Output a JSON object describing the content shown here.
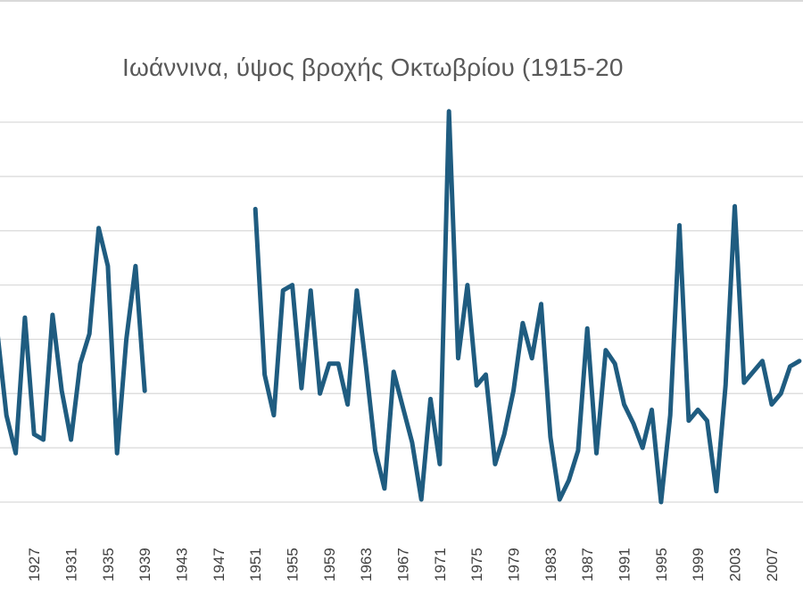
{
  "chart_data": {
    "type": "line",
    "title": "Ιωάννινα, ύψος βροχής Οκτωβρίου (1915-20",
    "xlabel": "",
    "ylabel": "",
    "grid": true,
    "legend": "none",
    "colors": {
      "line": "#1f5c80",
      "grid": "#d9d9d9",
      "text": "#404040",
      "title": "#595959"
    },
    "ylim": [
      0,
      7
    ],
    "xlim": [
      1923.3,
      2010.4
    ],
    "tick_labels": [
      "1927",
      "1931",
      "1935",
      "1939",
      "1943",
      "1947",
      "1951",
      "1955",
      "1959",
      "1963",
      "1967",
      "1971",
      "1975",
      "1979",
      "1983",
      "1987",
      "1991",
      "1995",
      "1999",
      "2003",
      "2007"
    ],
    "series": [
      {
        "x": [
          1923,
          1924,
          1925,
          1926,
          1927,
          1928,
          1929,
          1930,
          1931,
          1932,
          1933,
          1934,
          1935,
          1936,
          1937,
          1938,
          1939,
          1940,
          1941,
          1942,
          1943,
          1944,
          1945,
          1946,
          1947,
          1948,
          1949,
          1950,
          1951,
          1952,
          1953,
          1954,
          1955,
          1956,
          1957,
          1958,
          1959,
          1960,
          1961,
          1962,
          1963,
          1964,
          1965,
          1966,
          1967,
          1968,
          1969,
          1970,
          1971,
          1972,
          1973,
          1974,
          1975,
          1976,
          1977,
          1978,
          1979,
          1980,
          1981,
          1982,
          1983,
          1984,
          1985,
          1986,
          1987,
          1988,
          1989,
          1990,
          1991,
          1992,
          1993,
          1994,
          1995,
          1996,
          1997,
          1998,
          1999,
          2000,
          2001,
          2002,
          2003,
          2004,
          2005,
          2006,
          2007,
          2008,
          2009,
          2010
        ],
        "values": [
          3.15,
          1.6,
          0.9,
          3.4,
          1.25,
          1.15,
          3.45,
          2.05,
          1.15,
          2.55,
          3.1,
          5.05,
          4.35,
          0.9,
          3.0,
          4.35,
          2.05,
          null,
          null,
          null,
          null,
          null,
          null,
          null,
          null,
          null,
          null,
          null,
          5.4,
          2.35,
          1.6,
          3.9,
          4.0,
          2.1,
          3.9,
          2.0,
          2.55,
          2.55,
          1.8,
          3.9,
          2.5,
          0.95,
          0.25,
          2.4,
          1.75,
          1.1,
          0.05,
          1.9,
          0.7,
          7.2,
          2.65,
          4.0,
          2.15,
          2.35,
          0.7,
          1.25,
          2.05,
          3.3,
          2.65,
          3.65,
          1.2,
          0.05,
          0.4,
          0.95,
          3.2,
          0.9,
          2.8,
          2.55,
          1.8,
          1.45,
          1.0,
          1.7,
          0.0,
          1.6,
          5.1,
          1.5,
          1.7,
          1.5,
          0.2,
          2.15,
          5.45,
          2.2,
          2.4,
          2.6,
          1.8,
          2.0,
          2.5,
          2.6
        ]
      }
    ]
  }
}
